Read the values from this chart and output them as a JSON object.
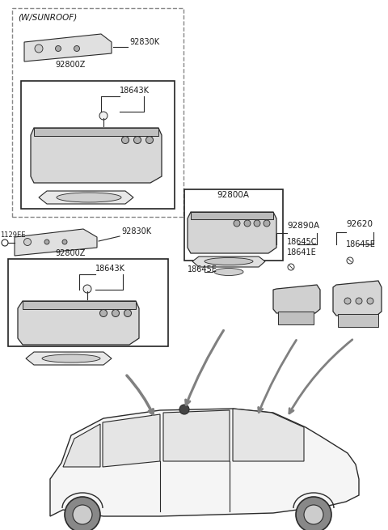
{
  "bg_color": "#ffffff",
  "line_color": "#2a2a2a",
  "text_color": "#1a1a1a",
  "dashed_box_color": "#888888",
  "solid_box_color": "#222222",
  "gray_arrow_color": "#808080",
  "part_labels": {
    "sunroof_label": "(W/SUNROOF)",
    "p92830K_top": "92830K",
    "p92800Z_top": "92800Z",
    "p18643K_top": "18643K",
    "p1129EE": "1129EE",
    "p92830K_bot": "92830K",
    "p92800Z_bot": "92800Z",
    "p18643K_bot": "18643K",
    "p92800A": "92800A",
    "p18645E_ctr": "18645E",
    "p92890A": "92890A",
    "p18645C": "18645C",
    "p18641E": "18641E",
    "p92620": "92620",
    "p18645E_right": "18645E"
  }
}
